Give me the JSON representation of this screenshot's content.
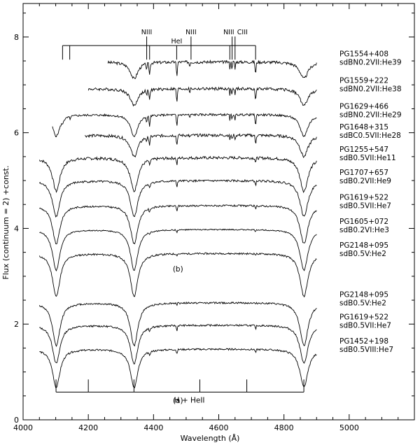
{
  "chart_data": {
    "type": "line",
    "xlabel": "Wavelength (Å)",
    "ylabel": "Flux (continuum = 2) +const.",
    "xlim": [
      4000,
      5200
    ],
    "ylim": [
      0,
      8.7
    ],
    "xticks": [
      "4000",
      "4200",
      "4400",
      "4600",
      "4800",
      "5000"
    ],
    "yticks": [
      "0",
      "2",
      "4",
      "6",
      "8"
    ],
    "grid": false,
    "panel_labels": [
      {
        "text": "(b)",
        "x": 4475,
        "y": 3.1
      },
      {
        "text": "(a)",
        "x": 4475,
        "y": 0.35
      }
    ],
    "line_ids_top": {
      "labels": [
        {
          "text": "NIII",
          "x": 4379
        },
        {
          "text": "HeI",
          "x": 4471
        },
        {
          "text": "NIII",
          "x": 4515
        },
        {
          "text": "NIII",
          "x": 4641
        },
        {
          "text": "CIII",
          "x": 4650
        }
      ],
      "bracket_y": 7.82,
      "ticks": [
        4121,
        4143,
        4379,
        4388,
        4471,
        4515,
        4634,
        4641,
        4650,
        4713
      ]
    },
    "line_ids_bottom": {
      "label": "H + HeII",
      "bracket_y": 0.58,
      "ticks": [
        4101,
        4200,
        4340,
        4542,
        4686,
        4861
      ]
    },
    "series": [
      {
        "name": "PG1554+408",
        "class": "sdBN0.2VII:He39",
        "offset": 7.48,
        "xstart": 4260,
        "xend": 4900,
        "hdepth": 0.35,
        "helium": 0.28,
        "noise": 0.03
      },
      {
        "name": "PG1559+222",
        "class": "sdBN0.2VII:He38",
        "offset": 6.92,
        "xstart": 4200,
        "xend": 4900,
        "hdepth": 0.35,
        "helium": 0.27,
        "noise": 0.03
      },
      {
        "name": "PG1629+466",
        "class": "sdBN0.2VII:He29",
        "offset": 6.38,
        "xstart": 4090,
        "xend": 4900,
        "hdepth": 0.45,
        "helium": 0.24,
        "noise": 0.022
      },
      {
        "name": "PG1648+315",
        "class": "sdBC0.5VII:He28",
        "offset": 5.95,
        "xstart": 4190,
        "xend": 4900,
        "hdepth": 0.45,
        "helium": 0.2,
        "noise": 0.03
      },
      {
        "name": "PG1255+547",
        "class": "sdB0.5VII:He11",
        "offset": 5.48,
        "xstart": 4050,
        "xend": 4900,
        "hdepth": 0.7,
        "helium": 0.14,
        "noise": 0.03
      },
      {
        "name": "PG1707+657",
        "class": "sdB0.2VII:He9",
        "offset": 5.0,
        "xstart": 4050,
        "xend": 4900,
        "hdepth": 0.75,
        "helium": 0.12,
        "noise": 0.022
      },
      {
        "name": "PG1619+522",
        "class": "sdB0.5VII:He7",
        "offset": 4.48,
        "xstart": 4050,
        "xend": 4900,
        "hdepth": 0.8,
        "helium": 0.1,
        "noise": 0.018
      },
      {
        "name": "PG1605+072",
        "class": "sdB0.2VI:He3",
        "offset": 3.98,
        "xstart": 4050,
        "xend": 4900,
        "hdepth": 0.85,
        "helium": 0.05,
        "noise": 0.012
      },
      {
        "name": "PG2148+095",
        "class": "sdB0.5V:He2",
        "offset": 3.48,
        "xstart": 4050,
        "xend": 4900,
        "hdepth": 0.9,
        "helium": 0.03,
        "noise": 0.018
      },
      {
        "name": "PG2148+095",
        "class": "sdB0.5V:He2",
        "offset": 2.45,
        "xstart": 4050,
        "xend": 4900,
        "hdepth": 0.9,
        "helium": 0.03,
        "noise": 0.018
      },
      {
        "name": "PG1619+522",
        "class": "sdB0.5VII:He7",
        "offset": 1.98,
        "xstart": 4050,
        "xend": 4900,
        "hdepth": 0.8,
        "helium": 0.1,
        "noise": 0.018
      },
      {
        "name": "PG1452+198",
        "class": "sdB0.5VIII:He7",
        "offset": 1.48,
        "xstart": 4050,
        "xend": 4900,
        "hdepth": 0.8,
        "helium": 0.1,
        "noise": 0.018
      }
    ]
  }
}
